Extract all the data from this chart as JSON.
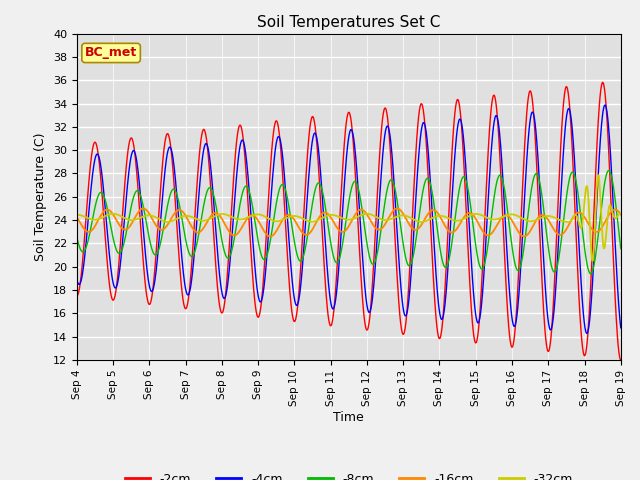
{
  "title": "Soil Temperatures Set C",
  "xlabel": "Time",
  "ylabel": "Soil Temperature (C)",
  "ylim": [
    12,
    40
  ],
  "yticks": [
    12,
    14,
    16,
    18,
    20,
    22,
    24,
    26,
    28,
    30,
    32,
    34,
    36,
    38,
    40
  ],
  "colors": {
    "-2cm": "#ff0000",
    "-4cm": "#0000ff",
    "-8cm": "#00bb00",
    "-16cm": "#ff8800",
    "-32cm": "#cccc00"
  },
  "annotation_text": "BC_met",
  "annotation_color": "#cc0000",
  "annotation_bg": "#ffff99",
  "plot_bg_color": "#e0e0e0"
}
